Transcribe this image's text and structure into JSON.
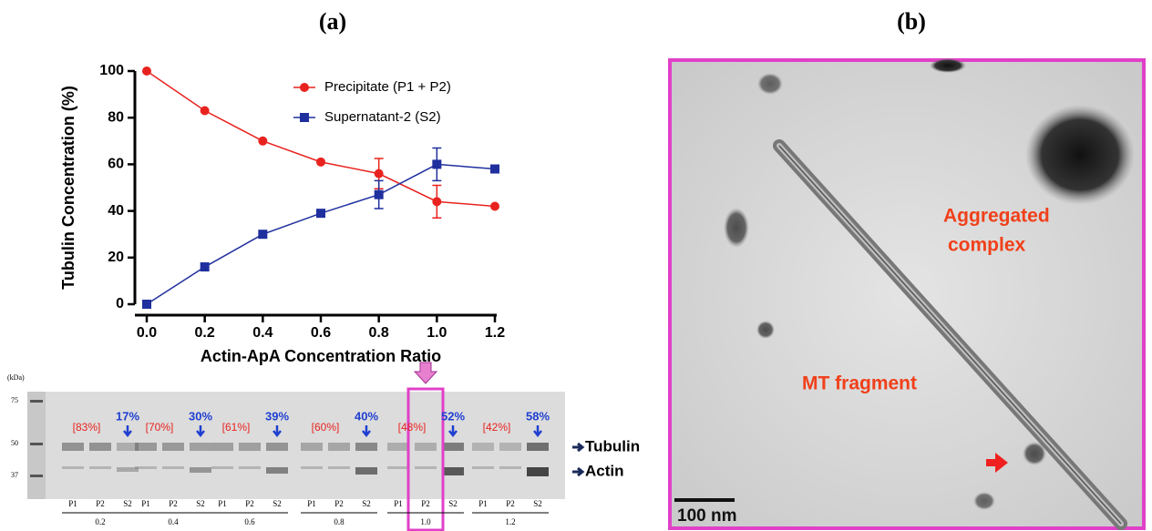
{
  "panels": {
    "a": "(a)",
    "b": "(b)"
  },
  "chart_data": {
    "type": "line",
    "x_label": "Actin-ApA Concentration Ratio",
    "y_label": "Tubulin Concentration (%)",
    "x": [
      0,
      0.2,
      0.4,
      0.6,
      0.8,
      1.0,
      1.2
    ],
    "series": [
      {
        "name": "Precipitate (P1 + P2)",
        "color": "#e8231f",
        "marker": "circle",
        "values": [
          100,
          83,
          70,
          61,
          56,
          44,
          42
        ],
        "errors": [
          null,
          null,
          null,
          null,
          6.5,
          7,
          null
        ]
      },
      {
        "name": "Supernatant-2 (S2)",
        "color": "#1f2f9e",
        "marker": "square",
        "values": [
          0,
          16,
          30,
          39,
          47,
          60,
          58
        ],
        "errors": [
          null,
          null,
          null,
          null,
          6,
          7,
          null
        ]
      }
    ],
    "xlim": [
      0,
      1.2
    ],
    "xticks": [
      {
        "value": 0,
        "label": "0.0"
      },
      0.2,
      0.4,
      0.6,
      0.8,
      {
        "value": 1,
        "label": "1.0"
      },
      1.2
    ],
    "ylim": [
      0,
      100
    ],
    "yticks": [
      0,
      20,
      40,
      60,
      80,
      100
    ],
    "legend": "top-right"
  },
  "gel": {
    "unit": "(kDa)",
    "markers": [
      "75",
      "50",
      "37"
    ],
    "groups": [
      {
        "ratio": "0.2",
        "lanes": [
          "P1",
          "P2",
          "S2"
        ],
        "precipitate": "[83%]",
        "supernatant": "17%"
      },
      {
        "ratio": "0.4",
        "lanes": [
          "P1",
          "P2",
          "S2"
        ],
        "precipitate": "[70%]",
        "supernatant": "30%"
      },
      {
        "ratio": "0.6",
        "lanes": [
          "P1",
          "P2",
          "S2"
        ],
        "precipitate": "[61%]",
        "supernatant": "39%"
      },
      {
        "ratio": "0.8",
        "lanes": [
          "P1",
          "P2",
          "S2"
        ],
        "precipitate": "[60%]",
        "supernatant": "40%"
      },
      {
        "ratio": "1.0",
        "lanes": [
          "P1",
          "P2",
          "S2"
        ],
        "precipitate": "[48%]",
        "supernatant": "52%"
      },
      {
        "ratio": "1.2",
        "lanes": [
          "P1",
          "P2",
          "S2"
        ],
        "precipitate": "[42%]",
        "supernatant": "58%"
      }
    ],
    "bands": [
      "Tubulin",
      "Actin"
    ]
  },
  "micrograph": {
    "aggregate_label": [
      "Aggregated",
      "complex"
    ],
    "mt_label": "MT fragment",
    "scale_bar": "100 nm"
  }
}
